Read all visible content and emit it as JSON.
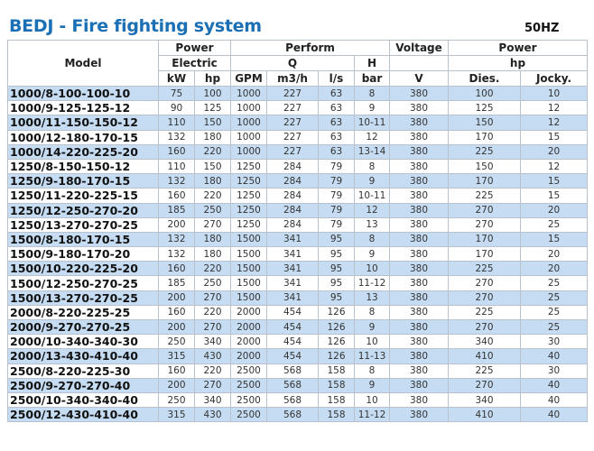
{
  "title": "BEDJ - Fire fighting system",
  "frequency": "50HZ",
  "colors": {
    "title": "#1b6fb5",
    "row_highlight": "#c6dcf2"
  },
  "headers": {
    "model": "Model",
    "power_electric": [
      "Power",
      "Electric"
    ],
    "perform": "Perform",
    "q": "Q",
    "h": "H",
    "voltage": "Voltage",
    "power": "Power",
    "hp_group": "hp",
    "units": [
      "kW",
      "hp",
      "GPM",
      "m3/h",
      "l/s",
      "bar",
      "V",
      "Dies.",
      "Jocky."
    ]
  },
  "rows": [
    [
      "1000/8-100-100-10",
      "75",
      "100",
      "1000",
      "227",
      "63",
      "8",
      "380",
      "100",
      "10"
    ],
    [
      "1000/9-125-125-12",
      "90",
      "125",
      "1000",
      "227",
      "63",
      "9",
      "380",
      "125",
      "12"
    ],
    [
      "1000/11-150-150-12",
      "110",
      "150",
      "1000",
      "227",
      "63",
      "10-11",
      "380",
      "150",
      "12"
    ],
    [
      "1000/12-180-170-15",
      "132",
      "180",
      "1000",
      "227",
      "63",
      "12",
      "380",
      "170",
      "15"
    ],
    [
      "1000/14-220-225-20",
      "160",
      "220",
      "1000",
      "227",
      "63",
      "13-14",
      "380",
      "225",
      "20"
    ],
    [
      "1250/8-150-150-12",
      "110",
      "150",
      "1250",
      "284",
      "79",
      "8",
      "380",
      "150",
      "12"
    ],
    [
      "1250/9-180-170-15",
      "132",
      "180",
      "1250",
      "284",
      "79",
      "9",
      "380",
      "170",
      "15"
    ],
    [
      "1250/11-220-225-15",
      "160",
      "220",
      "1250",
      "284",
      "79",
      "10-11",
      "380",
      "225",
      "15"
    ],
    [
      "1250/12-250-270-20",
      "185",
      "250",
      "1250",
      "284",
      "79",
      "12",
      "380",
      "270",
      "20"
    ],
    [
      "1250/13-270-270-25",
      "200",
      "270",
      "1250",
      "284",
      "79",
      "13",
      "380",
      "270",
      "25"
    ],
    [
      "1500/8-180-170-15",
      "132",
      "180",
      "1500",
      "341",
      "95",
      "8",
      "380",
      "170",
      "15"
    ],
    [
      "1500/9-180-170-20",
      "132",
      "180",
      "1500",
      "341",
      "95",
      "9",
      "380",
      "170",
      "20"
    ],
    [
      "1500/10-220-225-20",
      "160",
      "220",
      "1500",
      "341",
      "95",
      "10",
      "380",
      "225",
      "20"
    ],
    [
      "1500/12-250-270-25",
      "185",
      "250",
      "1500",
      "341",
      "95",
      "11-12",
      "380",
      "270",
      "25"
    ],
    [
      "1500/13-270-270-25",
      "200",
      "270",
      "1500",
      "341",
      "95",
      "13",
      "380",
      "270",
      "25"
    ],
    [
      "2000/8-220-225-25",
      "160",
      "220",
      "2000",
      "454",
      "126",
      "8",
      "380",
      "225",
      "25"
    ],
    [
      "2000/9-270-270-25",
      "200",
      "270",
      "2000",
      "454",
      "126",
      "9",
      "380",
      "270",
      "25"
    ],
    [
      "2000/10-340-340-30",
      "250",
      "340",
      "2000",
      "454",
      "126",
      "10",
      "380",
      "340",
      "30"
    ],
    [
      "2000/13-430-410-40",
      "315",
      "430",
      "2000",
      "454",
      "126",
      "11-13",
      "380",
      "410",
      "40"
    ],
    [
      "2500/8-220-225-30",
      "160",
      "220",
      "2500",
      "568",
      "158",
      "8",
      "380",
      "225",
      "30"
    ],
    [
      "2500/9-270-270-40",
      "200",
      "270",
      "2500",
      "568",
      "158",
      "9",
      "380",
      "270",
      "40"
    ],
    [
      "2500/10-340-340-40",
      "250",
      "340",
      "2500",
      "568",
      "158",
      "10",
      "380",
      "340",
      "40"
    ],
    [
      "2500/12-430-410-40",
      "315",
      "430",
      "2500",
      "568",
      "158",
      "11-12",
      "380",
      "410",
      "40"
    ]
  ]
}
